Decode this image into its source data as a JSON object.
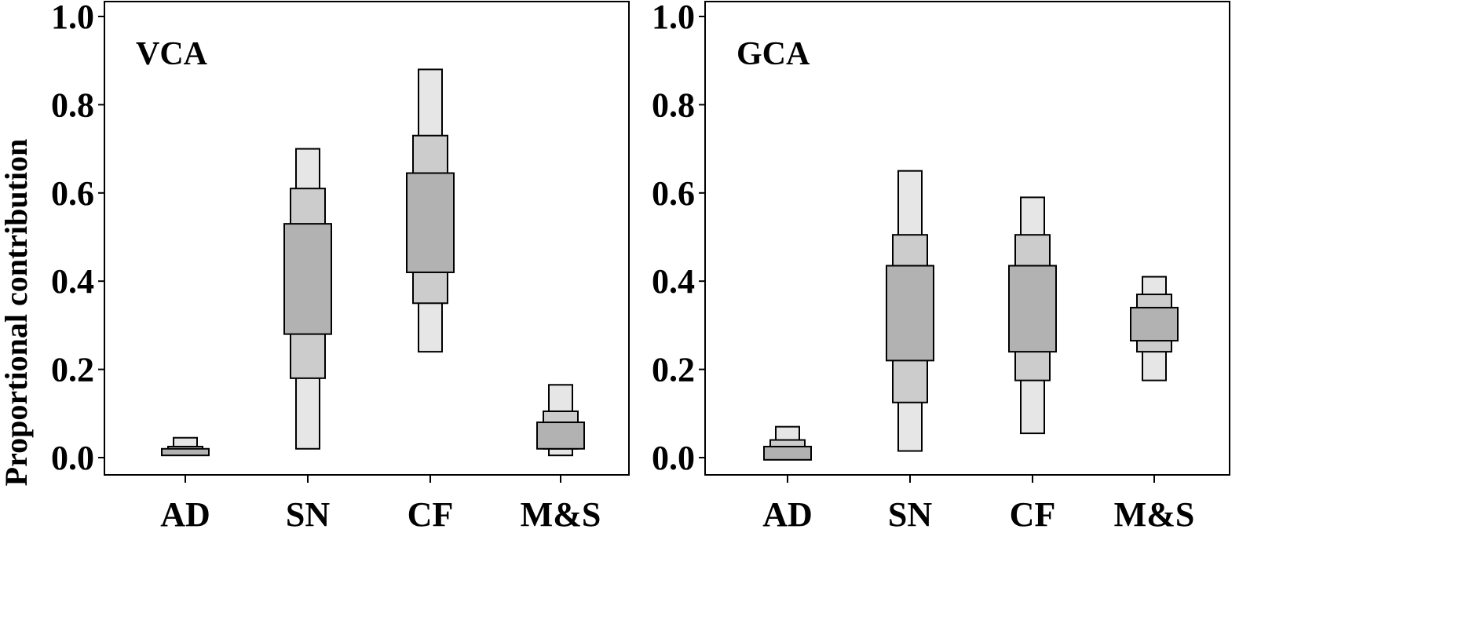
{
  "chart_data": {
    "type": "box-density",
    "ylabel": "Proportional contribution",
    "categories": [
      "AD",
      "SN",
      "CF",
      "M&S"
    ],
    "yticks": [
      "0.0",
      "0.2",
      "0.4",
      "0.6",
      "0.8",
      "1.0"
    ],
    "ylim": [
      0,
      1.0
    ],
    "colors": {
      "outer": "#e6e6e6",
      "middle": "#cccccc",
      "inner": "#b2b2b2",
      "stroke": "#000000"
    },
    "panels": [
      {
        "label": "VCA",
        "items": [
          {
            "category": "AD",
            "outer": [
              0.01,
              0.045
            ],
            "middle": [
              0.01,
              0.025
            ],
            "inner": [
              0.005,
              0.02
            ]
          },
          {
            "category": "SN",
            "outer": [
              0.02,
              0.7
            ],
            "middle": [
              0.18,
              0.61
            ],
            "inner": [
              0.28,
              0.53
            ]
          },
          {
            "category": "CF",
            "outer": [
              0.24,
              0.88
            ],
            "middle": [
              0.35,
              0.73
            ],
            "inner": [
              0.42,
              0.645
            ]
          },
          {
            "category": "M&S",
            "outer": [
              0.005,
              0.165
            ],
            "middle": [
              0.02,
              0.105
            ],
            "inner": [
              0.02,
              0.08
            ]
          }
        ]
      },
      {
        "label": "GCA",
        "items": [
          {
            "category": "AD",
            "outer": [
              0.0,
              0.07
            ],
            "middle": [
              0.0,
              0.04
            ],
            "inner": [
              -0.005,
              0.025
            ]
          },
          {
            "category": "SN",
            "outer": [
              0.015,
              0.65
            ],
            "middle": [
              0.125,
              0.505
            ],
            "inner": [
              0.22,
              0.435
            ]
          },
          {
            "category": "CF",
            "outer": [
              0.055,
              0.59
            ],
            "middle": [
              0.175,
              0.505
            ],
            "inner": [
              0.24,
              0.435
            ]
          },
          {
            "category": "M&S",
            "outer": [
              0.175,
              0.41
            ],
            "middle": [
              0.24,
              0.37
            ],
            "inner": [
              0.265,
              0.34
            ]
          }
        ]
      }
    ]
  }
}
